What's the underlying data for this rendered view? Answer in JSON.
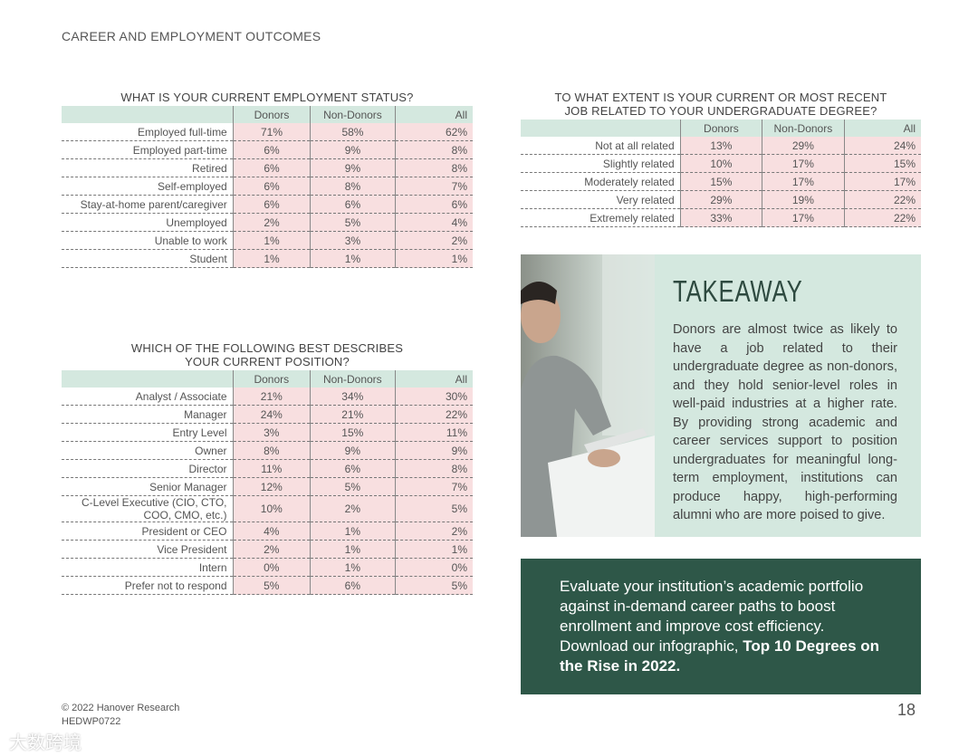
{
  "header": "CAREER AND EMPLOYMENT OUTCOMES",
  "tables": [
    {
      "title": "WHAT IS YOUR CURRENT EMPLOYMENT STATUS?",
      "columns": [
        "Donors",
        "Non-Donors",
        "All"
      ],
      "rows": [
        [
          "Employed full-time",
          "71%",
          "58%",
          "62%"
        ],
        [
          "Employed part-time",
          "6%",
          "9%",
          "8%"
        ],
        [
          "Retired",
          "6%",
          "9%",
          "8%"
        ],
        [
          "Self-employed",
          "6%",
          "8%",
          "7%"
        ],
        [
          "Stay-at-home parent/caregiver",
          "6%",
          "6%",
          "6%"
        ],
        [
          "Unemployed",
          "2%",
          "5%",
          "4%"
        ],
        [
          "Unable to work",
          "1%",
          "3%",
          "2%"
        ],
        [
          "Student",
          "1%",
          "1%",
          "1%"
        ]
      ]
    },
    {
      "title": "TO WHAT EXTENT IS YOUR CURRENT OR MOST RECENT JOB RELATED TO YOUR UNDERGRADUATE DEGREE?",
      "columns": [
        "Donors",
        "Non-Donors",
        "All"
      ],
      "rows": [
        [
          "Not at all related",
          "13%",
          "29%",
          "24%"
        ],
        [
          "Slightly related",
          "10%",
          "17%",
          "15%"
        ],
        [
          "Moderately related",
          "15%",
          "17%",
          "17%"
        ],
        [
          "Very related",
          "29%",
          "19%",
          "22%"
        ],
        [
          "Extremely related",
          "33%",
          "17%",
          "22%"
        ]
      ]
    },
    {
      "title": "WHICH OF THE FOLLOWING BEST DESCRIBES YOUR CURRENT POSITION?",
      "columns": [
        "Donors",
        "Non-Donors",
        "All"
      ],
      "rows": [
        [
          "Analyst / Associate",
          "21%",
          "34%",
          "30%"
        ],
        [
          "Manager",
          "24%",
          "21%",
          "22%"
        ],
        [
          "Entry Level",
          "3%",
          "15%",
          "11%"
        ],
        [
          "Owner",
          "8%",
          "9%",
          "9%"
        ],
        [
          "Director",
          "11%",
          "6%",
          "8%"
        ],
        [
          "Senior Manager",
          "12%",
          "5%",
          "7%"
        ],
        [
          "C-Level Executive (CIO, CTO, COO, CMO, etc.)",
          "10%",
          "2%",
          "5%"
        ],
        [
          "President or CEO",
          "4%",
          "1%",
          "2%"
        ],
        [
          "Vice President",
          "2%",
          "1%",
          "1%"
        ],
        [
          "Intern",
          "0%",
          "1%",
          "0%"
        ],
        [
          "Prefer not to respond",
          "5%",
          "6%",
          "5%"
        ]
      ]
    }
  ],
  "takeaway": {
    "title": "TAKEAWAY",
    "text": "Donors are almost twice as likely to have a job related to their undergraduate degree as non-donors, and they hold senior-level roles in well-paid industries at a higher rate. By providing strong academic and career services support to position undergraduates for meaningful long-term employment, institutions can produce happy, high-performing alumni who are more poised to give."
  },
  "cta": {
    "text": "Evaluate your institution’s academic portfolio against in-demand career paths to boost enrollment and improve cost efficiency. Download our infographic, ",
    "link": "Top 10 Degrees on the Rise in 2022."
  },
  "footer": {
    "copyright": "© 2022 Hanover Research",
    "code": "HEDWP0722",
    "page": "18"
  },
  "watermark": "大数跨境"
}
